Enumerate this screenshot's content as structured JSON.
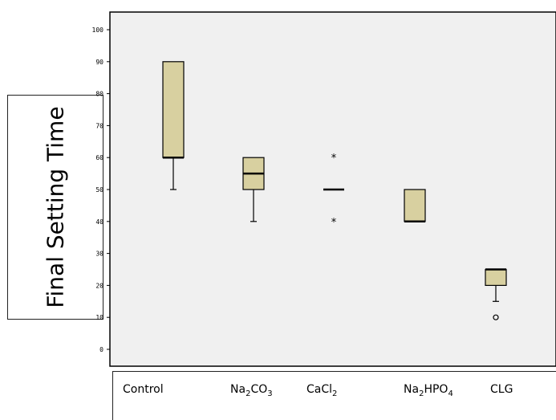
{
  "chart_data": {
    "type": "box",
    "ylabel": "Final Setting Time",
    "ylim": [
      -5,
      105
    ],
    "yticks": [
      0,
      10,
      20,
      30,
      40,
      50,
      60,
      70,
      80,
      90,
      100
    ],
    "categories": [
      {
        "label_main": "Control",
        "sub1": "",
        "mid": "",
        "sub2": ""
      },
      {
        "label_main": "Na",
        "sub1": "2",
        "mid": "CO",
        "sub2": "3"
      },
      {
        "label_main": "CaCl",
        "sub1": "2",
        "mid": "",
        "sub2": ""
      },
      {
        "label_main": "Na",
        "sub1": "2",
        "mid": "HPO",
        "sub2": "4"
      },
      {
        "label_main": "CLG",
        "sub1": "",
        "mid": "",
        "sub2": ""
      }
    ],
    "boxes": [
      {
        "whisker_low": 50,
        "q1": 60,
        "median": 60,
        "q3": 90,
        "whisker_high": 90,
        "outliers": [],
        "extremes": []
      },
      {
        "whisker_low": 40,
        "q1": 50,
        "median": 55,
        "q3": 60,
        "whisker_high": 60,
        "outliers": [],
        "extremes": []
      },
      {
        "whisker_low": 50,
        "q1": 50,
        "median": 50,
        "q3": 50,
        "whisker_high": 50,
        "outliers": [],
        "extremes": [
          60,
          40
        ]
      },
      {
        "whisker_low": 40,
        "q1": 40,
        "median": 40,
        "q3": 50,
        "whisker_high": 50,
        "outliers": [],
        "extremes": []
      },
      {
        "whisker_low": 15,
        "q1": 20,
        "median": 25,
        "q3": 25,
        "whisker_high": 25,
        "outliers": [
          10
        ],
        "extremes": []
      }
    ],
    "colors": {
      "box_fill": "#d8d0a0",
      "plot_bg": "#f0f0f0",
      "ink": "#000000"
    },
    "grid": false,
    "legend": "none"
  }
}
